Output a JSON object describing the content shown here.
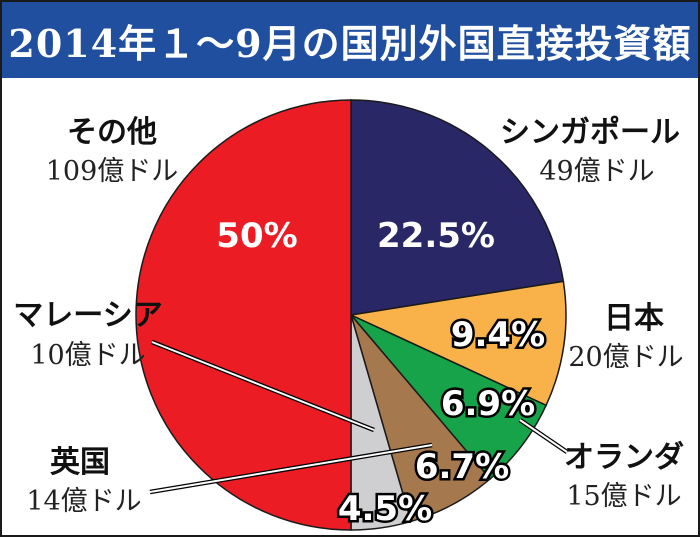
{
  "title": "2014年１～9月の国別外国直接投資額",
  "colors": {
    "title_bg": "#1f4f9e",
    "singapore": "#2a2766",
    "japan": "#f9b24a",
    "netherlands": "#16a34a",
    "uk": "#a6784e",
    "malaysia": "#cfcfd1",
    "others": "#ec1c24"
  },
  "chart_data": {
    "type": "pie",
    "title": "2014年１～9月の国別外国直接投資額",
    "slices": [
      {
        "name": "シンガポール",
        "amount": "49億ドル",
        "percent": 22.5,
        "percent_label": "22.5%",
        "color": "#2a2766"
      },
      {
        "name": "日本",
        "amount": "20億ドル",
        "percent": 9.4,
        "percent_label": "9.4%",
        "color": "#f9b24a"
      },
      {
        "name": "オランダ",
        "amount": "15億ドル",
        "percent": 6.9,
        "percent_label": "6.9%",
        "color": "#16a34a"
      },
      {
        "name": "英国",
        "amount": "14億ドル",
        "percent": 6.7,
        "percent_label": "6.7%",
        "color": "#a6784e"
      },
      {
        "name": "マレーシア",
        "amount": "10億ドル",
        "percent": 4.5,
        "percent_label": "4.5%",
        "color": "#cfcfd1"
      },
      {
        "name": "その他",
        "amount": "109億ドル",
        "percent": 50,
        "percent_label": "50%",
        "color": "#ec1c24"
      }
    ],
    "start": "top",
    "direction": "clockwise"
  }
}
